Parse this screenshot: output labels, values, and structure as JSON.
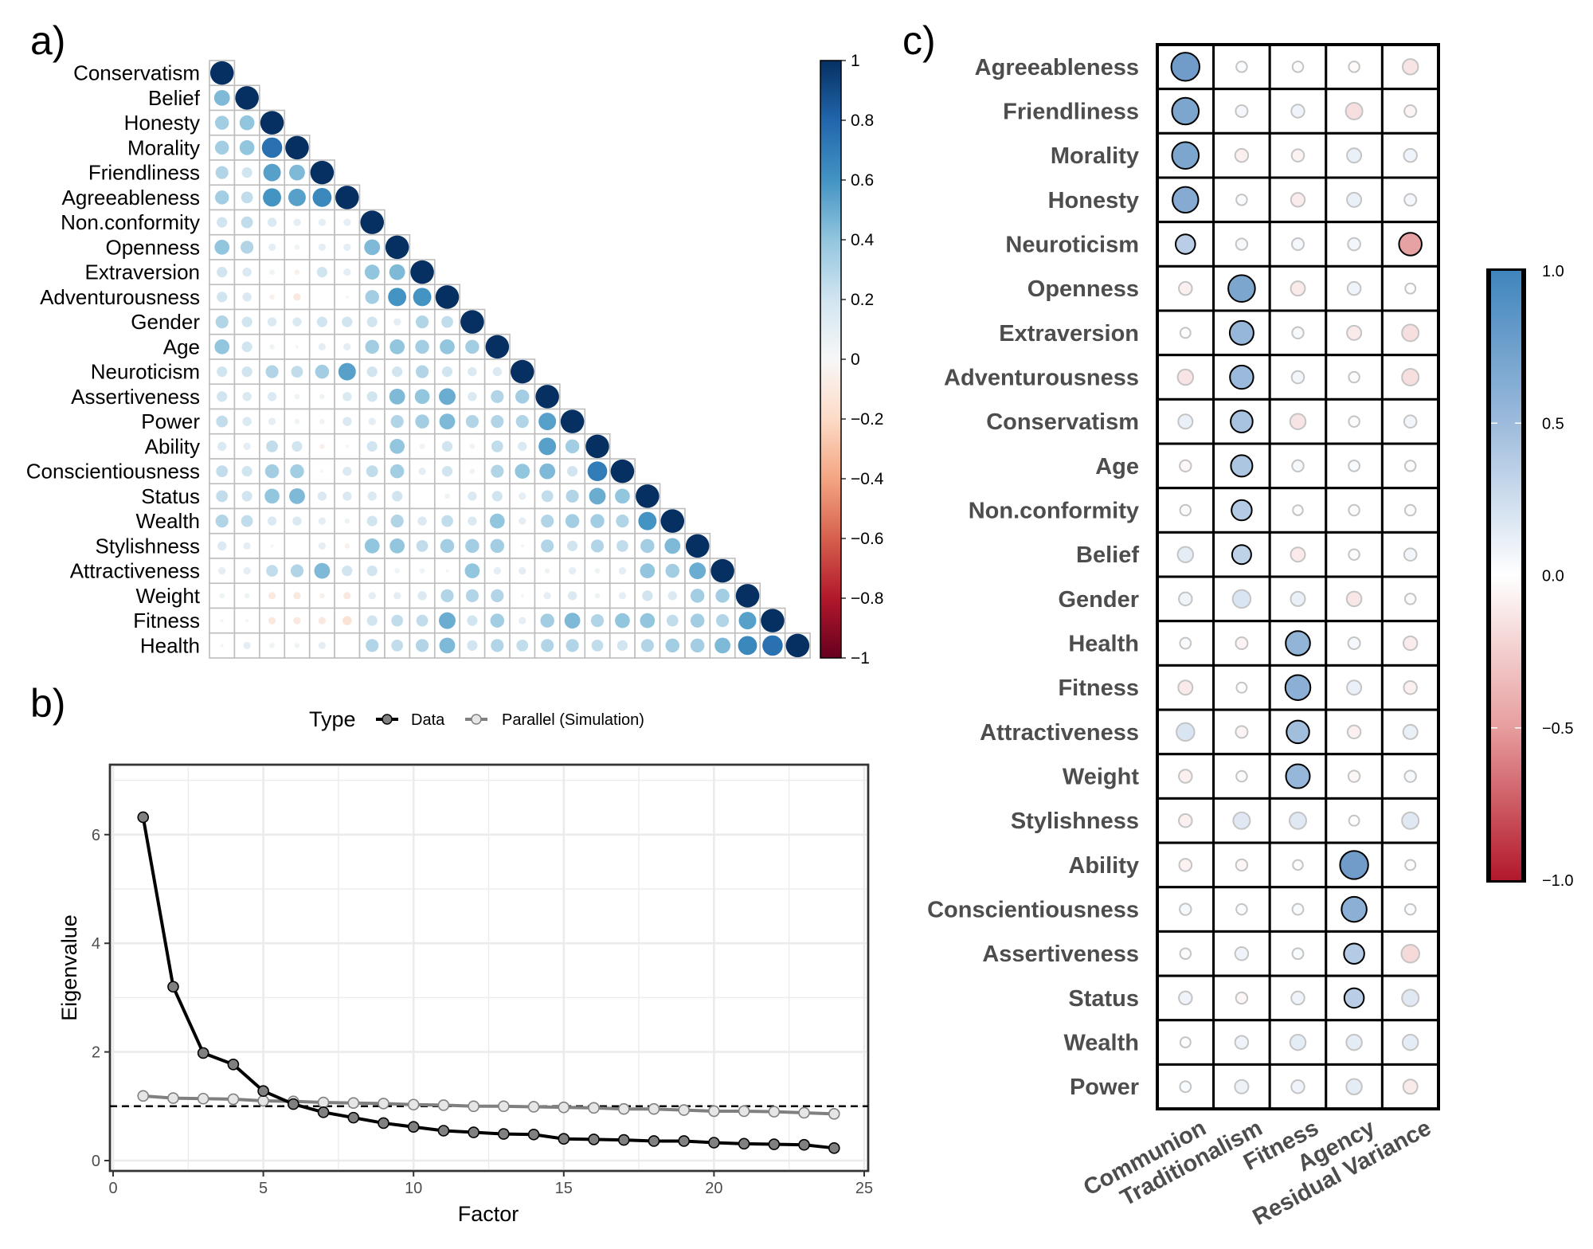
{
  "figure": {
    "panel_labels": [
      "a)",
      "b)",
      "c)"
    ]
  },
  "chart_data": [
    {
      "panel": "a",
      "type": "heatmap",
      "subtype": "correlation-matrix-lower-triangle",
      "title": "",
      "variables": [
        "Conservatism",
        "Belief",
        "Honesty",
        "Morality",
        "Friendliness",
        "Agreeableness",
        "Non.conformity",
        "Openness",
        "Extraversion",
        "Adventurousness",
        "Gender",
        "Age",
        "Neuroticism",
        "Assertiveness",
        "Power",
        "Ability",
        "Conscientiousness",
        "Status",
        "Wealth",
        "Stylishness",
        "Attractiveness",
        "Weight",
        "Fitness",
        "Health"
      ],
      "lower_triangle": [
        [
          1
        ],
        [
          0.45,
          1
        ],
        [
          0.35,
          0.4,
          1
        ],
        [
          0.35,
          0.4,
          0.75,
          1
        ],
        [
          0.3,
          0.2,
          0.55,
          0.45,
          1
        ],
        [
          0.35,
          0.25,
          0.6,
          0.55,
          0.65,
          1
        ],
        [
          0.2,
          0.25,
          0.15,
          0.1,
          0.1,
          0.1,
          1
        ],
        [
          0.4,
          0.3,
          0.1,
          0.05,
          0.1,
          0.1,
          0.45,
          1
        ],
        [
          0.2,
          0.15,
          0.05,
          -0.05,
          0.2,
          0.1,
          0.4,
          0.45,
          1
        ],
        [
          0.2,
          0.15,
          -0.05,
          -0.1,
          0.0,
          -0.02,
          0.35,
          0.6,
          0.6,
          1
        ],
        [
          0.3,
          0.2,
          0.15,
          0.15,
          0.2,
          0.2,
          0.2,
          0.1,
          0.3,
          0.25,
          1
        ],
        [
          0.4,
          0.2,
          0.05,
          0.02,
          0.1,
          0.1,
          0.35,
          0.4,
          0.35,
          0.4,
          0.35,
          1
        ],
        [
          0.2,
          0.2,
          0.3,
          0.25,
          0.35,
          0.55,
          0.2,
          0.2,
          0.3,
          0.2,
          0.15,
          0.15,
          1
        ],
        [
          0.2,
          0.15,
          0.15,
          0.05,
          0.05,
          0.15,
          0.2,
          0.45,
          0.4,
          0.5,
          0.15,
          0.3,
          0.35,
          1
        ],
        [
          0.25,
          0.15,
          0.1,
          0.05,
          0.05,
          0.15,
          0.1,
          0.3,
          0.35,
          0.45,
          0.3,
          0.3,
          0.3,
          0.55,
          1
        ],
        [
          0.15,
          0.1,
          0.25,
          0.2,
          -0.05,
          0.02,
          0.2,
          0.4,
          0.05,
          0.2,
          0.05,
          0.25,
          0.15,
          0.55,
          0.35,
          1
        ],
        [
          0.25,
          0.2,
          0.35,
          0.35,
          0.02,
          0.15,
          0.25,
          0.35,
          0.1,
          0.2,
          0.05,
          0.3,
          0.4,
          0.45,
          0.2,
          0.7,
          1
        ],
        [
          0.25,
          0.2,
          0.4,
          0.45,
          0.15,
          0.15,
          0.15,
          0.2,
          0.0,
          0.05,
          0.15,
          0.2,
          0.1,
          0.25,
          0.3,
          0.5,
          0.4,
          1
        ],
        [
          0.3,
          0.25,
          0.15,
          0.15,
          0.1,
          0.05,
          0.2,
          0.3,
          0.15,
          0.25,
          0.15,
          0.4,
          0.1,
          0.3,
          0.35,
          0.35,
          0.3,
          0.6,
          1
        ],
        [
          0.15,
          0.1,
          0.02,
          0.0,
          0.1,
          -0.05,
          0.4,
          0.4,
          0.25,
          0.35,
          0.35,
          0.35,
          0.02,
          0.3,
          0.2,
          0.3,
          0.25,
          0.35,
          0.45,
          1
        ],
        [
          0.1,
          0.1,
          0.25,
          0.3,
          0.45,
          0.2,
          0.2,
          0.05,
          0.05,
          0.02,
          0.4,
          0.1,
          0.1,
          0.05,
          0.1,
          0.05,
          0.1,
          0.4,
          0.35,
          0.5,
          1
        ],
        [
          0.05,
          0.05,
          -0.1,
          -0.1,
          -0.05,
          -0.1,
          0.1,
          0.1,
          0.15,
          0.3,
          0.3,
          0.3,
          0.02,
          0.1,
          0.15,
          0.05,
          0.1,
          0.2,
          0.15,
          0.35,
          0.35,
          1
        ],
        [
          0.02,
          0.02,
          -0.1,
          -0.1,
          -0.1,
          -0.15,
          0.2,
          0.25,
          0.25,
          0.5,
          0.2,
          0.35,
          0.1,
          0.35,
          0.45,
          0.3,
          0.4,
          0.4,
          0.25,
          0.35,
          0.3,
          0.55,
          1
        ],
        [
          0.02,
          0.1,
          0.05,
          0.05,
          0.1,
          0.0,
          0.3,
          0.25,
          0.3,
          0.45,
          0.2,
          0.3,
          0.25,
          0.3,
          0.3,
          0.25,
          0.2,
          0.3,
          0.35,
          0.35,
          0.45,
          0.65,
          0.75,
          1
        ]
      ],
      "colorbar": {
        "min": -1,
        "max": 1,
        "ticks": [
          "1",
          "0.8",
          "0.6",
          "0.4",
          "0.2",
          "0",
          "−0.2",
          "−0.4",
          "−0.6",
          "−0.8",
          "−1"
        ]
      },
      "colors": {
        "neg_strong": "#67001f",
        "neg_mid": "#d6604d",
        "neg_light": "#fddbc7",
        "zero": "#f7f7f7",
        "pos_light": "#d1e5f0",
        "pos_mid": "#4393c3",
        "pos_strong": "#053061"
      }
    },
    {
      "panel": "b",
      "type": "line",
      "title": "",
      "xlabel": "Factor",
      "ylabel": "Eigenvalue",
      "xlim": [
        0,
        25
      ],
      "ylim": [
        -0.3,
        7.2
      ],
      "xticks": [
        "0",
        "5",
        "10",
        "15",
        "20",
        "25"
      ],
      "yticks": [
        "0",
        "2",
        "4",
        "6"
      ],
      "grid": true,
      "legend": {
        "title": "Type",
        "position": "top",
        "entries": [
          "Data",
          "Parallel (Simulation)"
        ]
      },
      "reference_line": {
        "y": 1,
        "style": "dashed"
      },
      "x": [
        1,
        2,
        3,
        4,
        5,
        6,
        7,
        8,
        9,
        10,
        11,
        12,
        13,
        14,
        15,
        16,
        17,
        18,
        19,
        20,
        21,
        22,
        23,
        24
      ],
      "series": [
        {
          "name": "Data",
          "color": "#000000",
          "marker_fill": "#808080",
          "values": [
            6.32,
            3.2,
            1.98,
            1.77,
            1.28,
            1.04,
            0.89,
            0.79,
            0.69,
            0.62,
            0.55,
            0.52,
            0.49,
            0.48,
            0.4,
            0.39,
            0.38,
            0.36,
            0.36,
            0.33,
            0.31,
            0.3,
            0.29,
            0.23
          ]
        },
        {
          "name": "Parallel (Simulation)",
          "color": "#808080",
          "marker_fill": "#e6e6e6",
          "values": [
            1.19,
            1.15,
            1.14,
            1.13,
            1.1,
            1.09,
            1.07,
            1.06,
            1.05,
            1.03,
            1.02,
            1.0,
            1.0,
            0.99,
            0.98,
            0.97,
            0.95,
            0.95,
            0.93,
            0.91,
            0.91,
            0.9,
            0.88,
            0.86
          ]
        }
      ]
    },
    {
      "panel": "c",
      "type": "heatmap",
      "subtype": "factor-loadings",
      "title": "",
      "rows": [
        "Agreeableness",
        "Friendliness",
        "Morality",
        "Honesty",
        "Neuroticism",
        "Openness",
        "Extraversion",
        "Adventurousness",
        "Conservatism",
        "Age",
        "Non.conformity",
        "Belief",
        "Gender",
        "Health",
        "Fitness",
        "Attractiveness",
        "Weight",
        "Stylishness",
        "Ability",
        "Conscientiousness",
        "Assertiveness",
        "Status",
        "Wealth",
        "Power"
      ],
      "columns": [
        "Communion",
        "Traditionalism",
        "Fitness",
        "Agency",
        "Residual Variance"
      ],
      "values": [
        [
          0.78,
          0.05,
          0.05,
          -0.05,
          -0.25
        ],
        [
          0.72,
          0.1,
          0.15,
          -0.3,
          -0.1
        ],
        [
          0.72,
          -0.15,
          -0.12,
          0.2,
          0.15
        ],
        [
          0.68,
          0.05,
          -0.18,
          0.2,
          0.1
        ],
        [
          0.42,
          0.08,
          0.1,
          0.12,
          -0.55
        ],
        [
          -0.15,
          0.72,
          -0.2,
          0.15,
          0.03
        ],
        [
          0.03,
          0.6,
          0.08,
          -0.2,
          -0.3
        ],
        [
          -0.25,
          0.58,
          0.12,
          0.05,
          -0.3
        ],
        [
          0.2,
          0.52,
          -0.25,
          0.05,
          0.12
        ],
        [
          -0.08,
          0.5,
          0.08,
          0.06,
          0.05
        ],
        [
          0.05,
          0.45,
          0.02,
          0.05,
          0.05
        ],
        [
          0.25,
          0.4,
          -0.2,
          0.05,
          0.12
        ],
        [
          0.15,
          0.35,
          0.2,
          -0.22,
          0.05
        ],
        [
          0.06,
          -0.1,
          0.62,
          0.1,
          -0.18
        ],
        [
          -0.2,
          0.03,
          0.65,
          0.2,
          -0.15
        ],
        [
          0.35,
          -0.1,
          0.55,
          -0.15,
          0.2
        ],
        [
          -0.15,
          0.05,
          0.6,
          -0.08,
          0.08
        ],
        [
          -0.15,
          0.3,
          0.3,
          0.03,
          0.3
        ],
        [
          -0.12,
          -0.08,
          0.02,
          0.78,
          0.03
        ],
        [
          0.08,
          0.05,
          0.06,
          0.65,
          0.05
        ],
        [
          0.05,
          0.15,
          0.06,
          0.45,
          -0.35
        ],
        [
          0.15,
          -0.08,
          0.15,
          0.42,
          0.3
        ],
        [
          0.03,
          0.15,
          0.25,
          0.25,
          0.25
        ],
        [
          0.06,
          0.17,
          0.15,
          0.25,
          -0.2
        ]
      ],
      "highlighted_primary_loadings": [
        [
          0,
          0
        ],
        [
          1,
          0
        ],
        [
          2,
          0
        ],
        [
          3,
          0
        ],
        [
          4,
          0
        ],
        [
          5,
          1
        ],
        [
          6,
          1
        ],
        [
          7,
          1
        ],
        [
          8,
          1
        ],
        [
          9,
          1
        ],
        [
          10,
          1
        ],
        [
          11,
          1
        ],
        [
          13,
          2
        ],
        [
          14,
          2
        ],
        [
          15,
          2
        ],
        [
          16,
          2
        ],
        [
          18,
          3
        ],
        [
          19,
          3
        ],
        [
          20,
          3
        ],
        [
          21,
          3
        ],
        [
          4,
          4
        ]
      ],
      "colorbar": {
        "min": -1,
        "max": 1,
        "ticks": [
          "1.0",
          "0.5",
          "0.0",
          "−0.5",
          "−1.0"
        ]
      },
      "colors": {
        "neg": "#b2182b",
        "zero": "#ffffff",
        "pos": "#2166ac"
      }
    }
  ]
}
